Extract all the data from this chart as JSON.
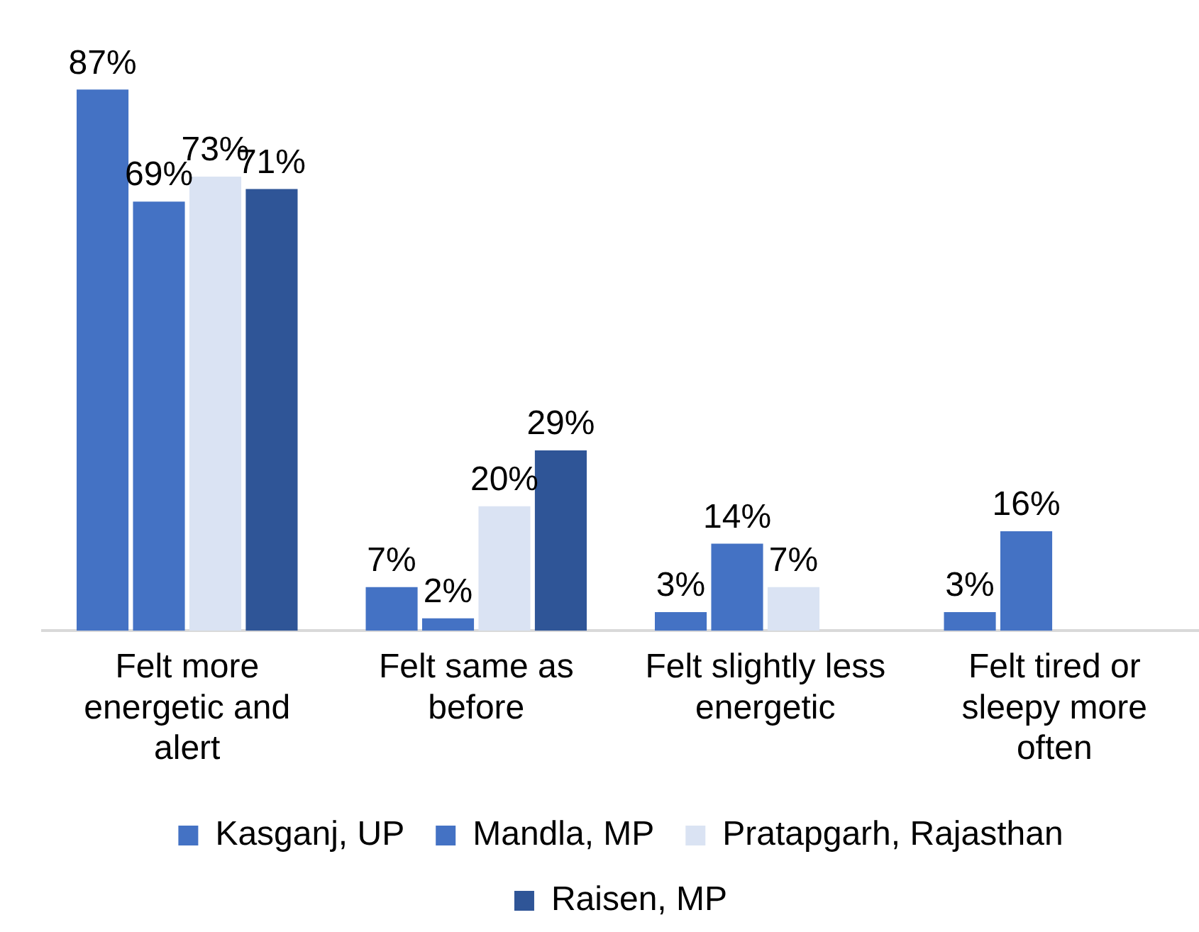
{
  "chart_data": {
    "type": "bar",
    "categories": [
      "Felt more energetic and alert",
      "Felt same as before",
      "Felt slightly less energetic",
      "Felt tired or sleepy more often"
    ],
    "series": [
      {
        "name": "Kasganj, UP",
        "color": "#4472c4",
        "values": [
          87,
          7,
          3,
          3
        ],
        "value_labels": [
          "87%",
          "7%",
          "3%",
          "3%"
        ]
      },
      {
        "name": "Mandla, MP",
        "color": "#4472c4",
        "values": [
          69,
          2,
          14,
          16
        ],
        "value_labels": [
          "69%",
          "2%",
          "14%",
          "16%"
        ]
      },
      {
        "name": "Pratapgarh, Rajasthan",
        "color": "#dae3f3",
        "values": [
          73,
          20,
          7,
          null
        ],
        "value_labels": [
          "73%",
          "20%",
          "7%",
          null
        ]
      },
      {
        "name": "Raisen, MP",
        "color": "#2f5597",
        "values": [
          71,
          29,
          null,
          null
        ],
        "value_labels": [
          "71%",
          "29%",
          null,
          null
        ]
      }
    ],
    "legend": "bottom",
    "grid": false
  }
}
